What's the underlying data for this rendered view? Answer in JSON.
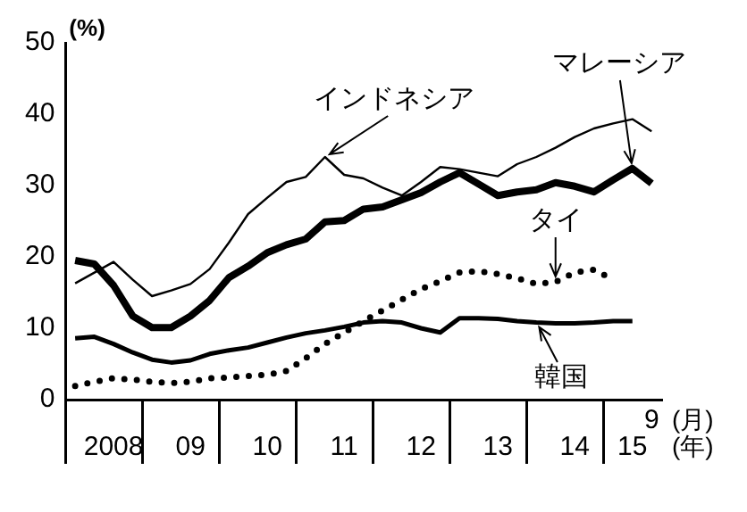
{
  "chart_data": {
    "type": "line",
    "ylabel": "(%)",
    "annotations": [
      "(月)",
      "(年)"
    ],
    "categories": [
      null,
      null,
      "2008",
      null,
      null,
      null,
      "09",
      null,
      null,
      null,
      "10",
      null,
      null,
      null,
      "11",
      null,
      null,
      null,
      "12",
      null,
      null,
      null,
      "13",
      null,
      null,
      null,
      "14",
      null,
      null,
      "15",
      "9"
    ],
    "series": [
      {
        "name": "インドネシア",
        "color": "#000000",
        "values": [
          16.3,
          17.8,
          19.3,
          16.8,
          14.5,
          15.3,
          16.2,
          18.3,
          22,
          26,
          28.3,
          30.5,
          31.2,
          34,
          31.5,
          31,
          29.7,
          28.6,
          30.5,
          32.6,
          32.3,
          31.8,
          31.3,
          33,
          34,
          35.3,
          36.8,
          38,
          38.7,
          39.3,
          37.6
        ]
      },
      {
        "name": "マレーシア",
        "color": "#000000",
        "values": [
          19.5,
          19,
          16,
          11.7,
          10.1,
          10.1,
          11.7,
          13.9,
          17.1,
          18.7,
          20.6,
          21.7,
          22.5,
          24.9,
          25.1,
          26.7,
          27,
          28,
          29,
          30.5,
          31.8,
          30.2,
          28.6,
          29.1,
          29.4,
          30.4,
          29.9,
          29.1,
          30.8,
          32.4,
          30.3
        ]
      },
      {
        "name": "タイ",
        "color": "#000000",
        "line_style": "dotted",
        "values": [
          1.9,
          2.5,
          3,
          2.8,
          2.5,
          2.3,
          2.5,
          3,
          3.1,
          3.3,
          3.5,
          4,
          5.8,
          7.8,
          9.4,
          11,
          12.5,
          14,
          15.5,
          16.6,
          17.8,
          18,
          17.6,
          17,
          16.2,
          16.5,
          17.8,
          18.2,
          16.8,
          null,
          null
        ]
      },
      {
        "name": "韓国",
        "color": "#000000",
        "values": [
          8.6,
          8.8,
          7.8,
          6.6,
          5.6,
          5.2,
          5.5,
          6.4,
          6.9,
          7.3,
          8,
          8.7,
          9.3,
          9.7,
          10.2,
          10.8,
          11,
          10.8,
          10,
          9.4,
          11.4,
          11.4,
          11.3,
          11,
          10.8,
          10.7,
          10.7,
          10.8,
          11,
          11,
          null
        ]
      }
    ],
    "ylim": [
      0,
      50
    ],
    "yticks": [
      0,
      10,
      20,
      30,
      40,
      50
    ],
    "grid": false,
    "marker": "none"
  }
}
